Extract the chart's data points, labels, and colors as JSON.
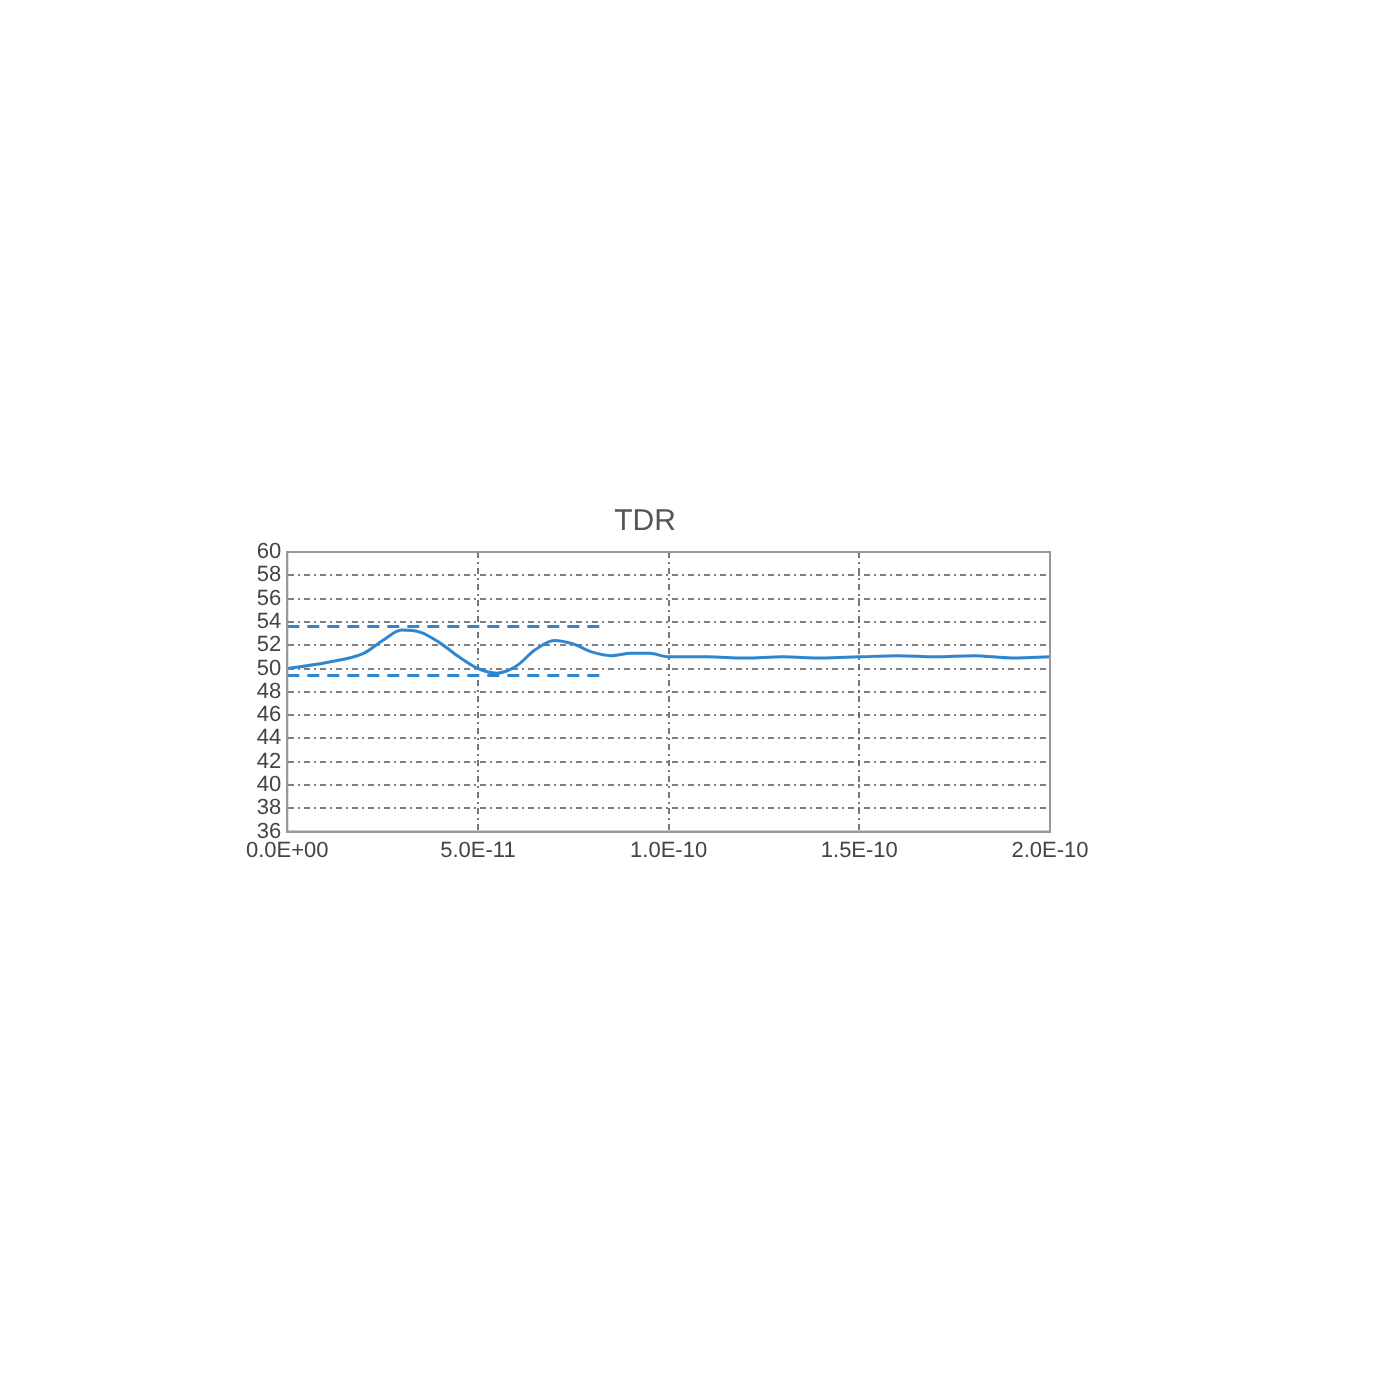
{
  "chart_data": {
    "type": "line",
    "title": "TDR",
    "grid": true,
    "legend": false,
    "marker": "none",
    "xlim": [
      0,
      2e-10
    ],
    "xticks": [
      {
        "value": 0,
        "label": "0.0E+00"
      },
      {
        "value": 5e-11,
        "label": "5.0E-11"
      },
      {
        "value": 1e-10,
        "label": "1.0E-10"
      },
      {
        "value": 1.5e-10,
        "label": "1.5E-10"
      },
      {
        "value": 2e-10,
        "label": "2.0E-10"
      }
    ],
    "ylim": [
      36,
      60
    ],
    "yticks": [
      36,
      38,
      40,
      42,
      44,
      46,
      48,
      50,
      52,
      54,
      56,
      58,
      60
    ],
    "series": [
      {
        "color": "#2f86d0",
        "line_style": "solid",
        "x": [
          0,
          1e-11,
          2e-11,
          2.5e-11,
          3e-11,
          3.5e-11,
          4e-11,
          4.5e-11,
          5e-11,
          5.5e-11,
          6e-11,
          6.5e-11,
          7e-11,
          7.5e-11,
          8e-11,
          8.5e-11,
          9e-11,
          9.5e-11,
          1e-10,
          1.1e-10,
          1.2e-10,
          1.3e-10,
          1.4e-10,
          1.5e-10,
          1.6e-10,
          1.7e-10,
          1.8e-10,
          1.9e-10,
          2e-10
        ],
        "values": [
          50.0,
          50.5,
          51.3,
          52.4,
          53.3,
          53.1,
          52.2,
          51.0,
          50.0,
          49.6,
          50.2,
          51.6,
          52.4,
          52.1,
          51.4,
          51.1,
          51.3,
          51.3,
          51.0,
          51.0,
          50.9,
          51.0,
          50.9,
          51.0,
          51.1,
          51.0,
          51.1,
          50.9,
          51.0
        ]
      },
      {
        "color": "#2f86d0",
        "line_style": "dashed",
        "x": [
          0,
          8.3e-11
        ],
        "values": [
          53.6,
          53.6
        ]
      },
      {
        "color": "#2f86d0",
        "line_style": "dashed",
        "x": [
          0,
          8.3e-11
        ],
        "values": [
          49.4,
          49.4
        ]
      }
    ]
  }
}
